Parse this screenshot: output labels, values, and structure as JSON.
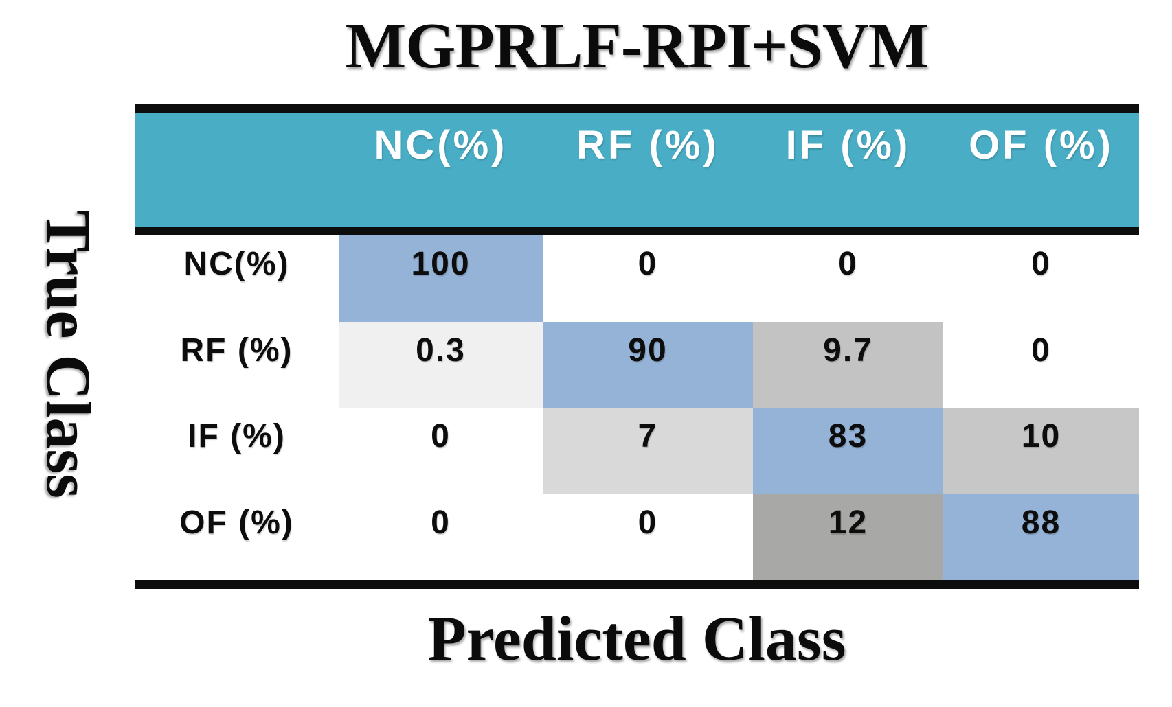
{
  "figure": {
    "title": "MGPRLF-RPI+SVM",
    "x_axis_label": "Predicted Class",
    "y_axis_label": "True Class"
  },
  "chart_data": {
    "type": "heatmap",
    "title": "MGPRLF-RPI+SVM",
    "xlabel": "Predicted Class",
    "ylabel": "True Class",
    "columns": [
      "NC(%)",
      "RF (%)",
      "IF (%)",
      "OF (%)"
    ],
    "rows": [
      "NC(%)",
      "RF (%)",
      "IF (%)",
      "OF (%)"
    ],
    "values": [
      [
        100,
        0,
        0,
        0
      ],
      [
        0.3,
        90,
        9.7,
        0
      ],
      [
        0,
        7,
        83,
        10
      ],
      [
        0,
        0,
        12,
        88
      ]
    ],
    "cell_colors": [
      [
        "#95B3D7",
        "#FFFFFF",
        "#FFFFFF",
        "#FFFFFF"
      ],
      [
        "#F0F0F0",
        "#95B3D7",
        "#C3C3C3",
        "#FFFFFF"
      ],
      [
        "#FFFFFF",
        "#D9D9D9",
        "#95B3D7",
        "#C7C7C7"
      ],
      [
        "#FFFFFF",
        "#FFFFFF",
        "#A8A8A6",
        "#95B3D7"
      ]
    ],
    "colors": {
      "header_bg": "#49ADC5",
      "diagonal_blue": "#95B3D7",
      "rule_black": "#0D0D0D",
      "header_text": "#FFFFFF",
      "cell_text": "#0D0D0D"
    },
    "layout": {
      "legend": "none",
      "grid": "off"
    }
  }
}
